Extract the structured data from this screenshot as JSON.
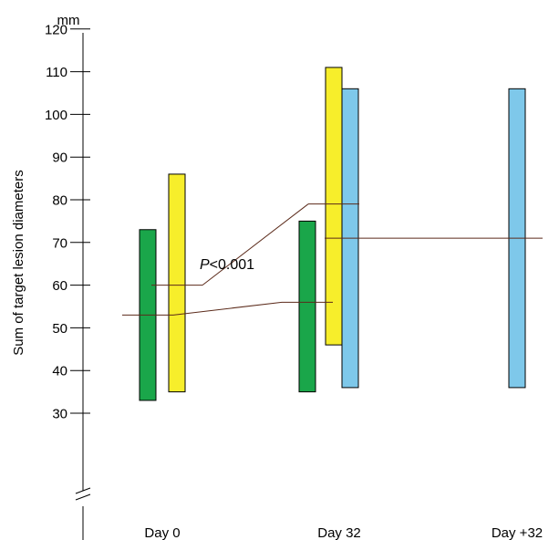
{
  "chart_data": {
    "type": "bar",
    "title": "",
    "xlabel": "",
    "ylabel": "Sum of target lesion diameters",
    "unit": "mm",
    "ylim": [
      20,
      125
    ],
    "y_axis_break": true,
    "yticks": [
      30,
      40,
      50,
      60,
      70,
      80,
      90,
      100,
      110,
      120
    ],
    "categories": [
      "Day 0",
      "Day 32",
      "Day +32"
    ],
    "bars_are_ranges": true,
    "colors": {
      "green": "#1aa64a",
      "yellow": "#f7ee2b",
      "blue": "#7ec8ea"
    },
    "series": [
      {
        "color": "green",
        "ranges": [
          [
            33,
            73
          ],
          [
            35,
            75
          ],
          null
        ],
        "medians": [
          53,
          56,
          null
        ]
      },
      {
        "color": "yellow",
        "ranges": [
          [
            35,
            86
          ],
          [
            46,
            111
          ],
          null
        ],
        "medians": [
          60,
          79,
          null
        ]
      },
      {
        "color": "blue",
        "ranges": [
          null,
          [
            36,
            106
          ],
          [
            36,
            106
          ]
        ],
        "medians": [
          null,
          71,
          71
        ]
      }
    ],
    "annotation": {
      "p_letter": "P",
      "text": "<0.001"
    }
  }
}
